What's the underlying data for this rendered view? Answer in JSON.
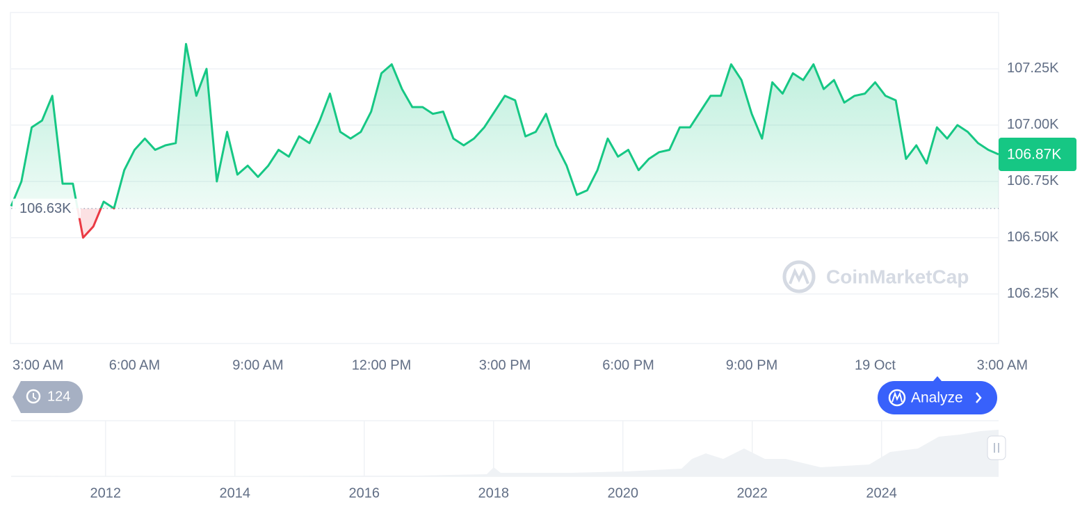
{
  "chart_data": {
    "type": "line",
    "categories": [
      "3:00 AM",
      null,
      null,
      null,
      null,
      null,
      null,
      null,
      null,
      null,
      null,
      null,
      "6:00 AM",
      null,
      null,
      null,
      null,
      null,
      null,
      null,
      null,
      null,
      null,
      null,
      "9:00 AM",
      null,
      null,
      null,
      null,
      null,
      null,
      null,
      null,
      null,
      null,
      null,
      "12:00 PM",
      null,
      null,
      null,
      null,
      null,
      null,
      null,
      null,
      null,
      null,
      null,
      "3:00 PM",
      null,
      null,
      null,
      null,
      null,
      null,
      null,
      null,
      null,
      null,
      null,
      "6:00 PM",
      null,
      null,
      null,
      null,
      null,
      null,
      null,
      null,
      null,
      null,
      null,
      "9:00 PM",
      null,
      null,
      null,
      null,
      null,
      null,
      null,
      null,
      null,
      null,
      null,
      "19 Oct",
      null,
      null,
      null,
      null,
      null,
      null,
      null,
      null,
      null,
      null,
      null,
      "3:00 AM"
    ],
    "values": [
      106640,
      106750,
      106990,
      107020,
      107130,
      106740,
      106740,
      106500,
      106550,
      106660,
      106630,
      106800,
      106890,
      106940,
      106890,
      106910,
      106920,
      107360,
      107130,
      107250,
      106750,
      106970,
      106780,
      106820,
      106770,
      106820,
      106890,
      106860,
      106950,
      106920,
      107020,
      107140,
      106970,
      106940,
      106970,
      107060,
      107230,
      107270,
      107160,
      107080,
      107080,
      107050,
      107060,
      106940,
      106910,
      106940,
      106990,
      107060,
      107130,
      107110,
      106950,
      106970,
      107050,
      106910,
      106820,
      106690,
      106710,
      106800,
      106940,
      106860,
      106890,
      106800,
      106850,
      106880,
      106890,
      106990,
      106990,
      107060,
      107130,
      107130,
      107270,
      107200,
      107050,
      106940,
      107190,
      107140,
      107230,
      107200,
      107270,
      107160,
      107200,
      107100,
      107130,
      107140,
      107190,
      107130,
      107110,
      106850,
      106910,
      106830,
      106990,
      106940,
      107000,
      106970,
      106920,
      106890,
      106870
    ],
    "color": "#16c784",
    "down_color": "#ea3943",
    "baseline": {
      "value": 106630,
      "label": "106.63K"
    },
    "current_price": {
      "value": 106870,
      "label": "106.87K"
    },
    "ylim": [
      106030,
      107500
    ],
    "yticks": [
      {
        "value": 106250,
        "label": "106.25K"
      },
      {
        "value": 106500,
        "label": "106.50K"
      },
      {
        "value": 106750,
        "label": "106.75K"
      },
      {
        "value": 107000,
        "label": "107.00K"
      },
      {
        "value": 107250,
        "label": "107.25K"
      }
    ],
    "grid": true,
    "watermark": "CoinMarketCap",
    "history_count": 124,
    "analyze_button": "Analyze"
  },
  "overview": {
    "xlim": [
      2010.54,
      2025.81
    ],
    "xticks": [
      2012,
      2014,
      2016,
      2018,
      2020,
      2022,
      2024
    ]
  }
}
